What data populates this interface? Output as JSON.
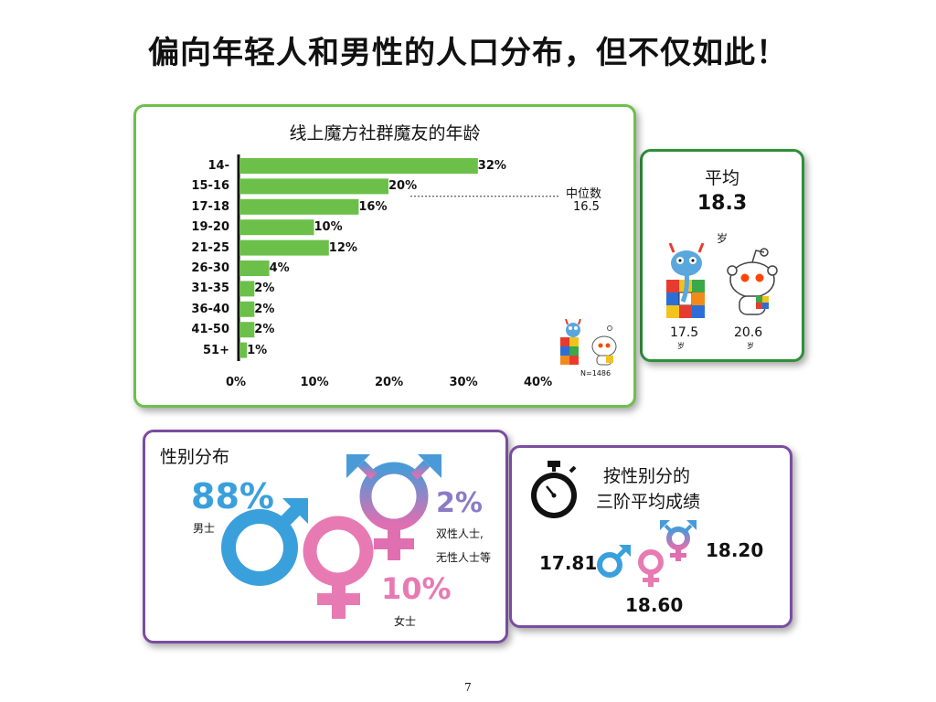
{
  "title": "偏向年轻人和男性的人口分布，但不仅如此！",
  "age_panel": {
    "title": "线上魔方社群魔友的年龄",
    "median_label": "中位数",
    "median_value": "16.5",
    "sample": "N=1486"
  },
  "avg_panel": {
    "label": "平均",
    "value": "18.3",
    "unit": "岁",
    "left_value": "17.5",
    "left_unit": "岁",
    "right_value": "20.6",
    "right_unit": "岁"
  },
  "gender_panel": {
    "title": "性别分布",
    "male_pct": "88%",
    "male_label": "男士",
    "female_pct": "10%",
    "female_label": "女士",
    "other_pct": "2%",
    "other_label_1": "双性人士,",
    "other_label_2": "无性人士等"
  },
  "grade_panel": {
    "title_1": "按性别分的",
    "title_2": "三阶平均成绩",
    "male_value": "17.81",
    "female_value": "18.60",
    "other_value": "18.20"
  },
  "page_number": "7",
  "colors": {
    "bar": "#6cc04a",
    "male": "#3aa0dc",
    "female": "#e87ab3",
    "other_top": "#4a9ad8",
    "other_bottom": "#e06fb2",
    "green_border": "#6cc04a",
    "purple_border": "#7a4da0"
  },
  "chart_data": [
    {
      "type": "bar",
      "orientation": "horizontal",
      "title": "线上魔方社群魔友的年龄",
      "categories": [
        "14-",
        "15-16",
        "17-18",
        "19-20",
        "21-25",
        "26-30",
        "31-35",
        "36-40",
        "41-50",
        "51+"
      ],
      "values": [
        32,
        20,
        16,
        10,
        12,
        4,
        2,
        2,
        2,
        1
      ],
      "value_labels": [
        "32%",
        "20%",
        "16%",
        "10%",
        "12%",
        "4%",
        "2%",
        "2%",
        "2%",
        "1%"
      ],
      "xlim": [
        0,
        40
      ],
      "x_ticks": [
        "0%",
        "10%",
        "20%",
        "30%",
        "40%"
      ],
      "grid": false
    },
    {
      "type": "pie",
      "title": "性别分布",
      "categories": [
        "男士",
        "女士",
        "双性人士, 无性人士等"
      ],
      "values": [
        88,
        10,
        2
      ]
    },
    {
      "type": "table",
      "title": "按性别分的 三阶平均成绩",
      "categories": [
        "male",
        "female",
        "other"
      ],
      "values": [
        17.81,
        18.6,
        18.2
      ]
    }
  ]
}
